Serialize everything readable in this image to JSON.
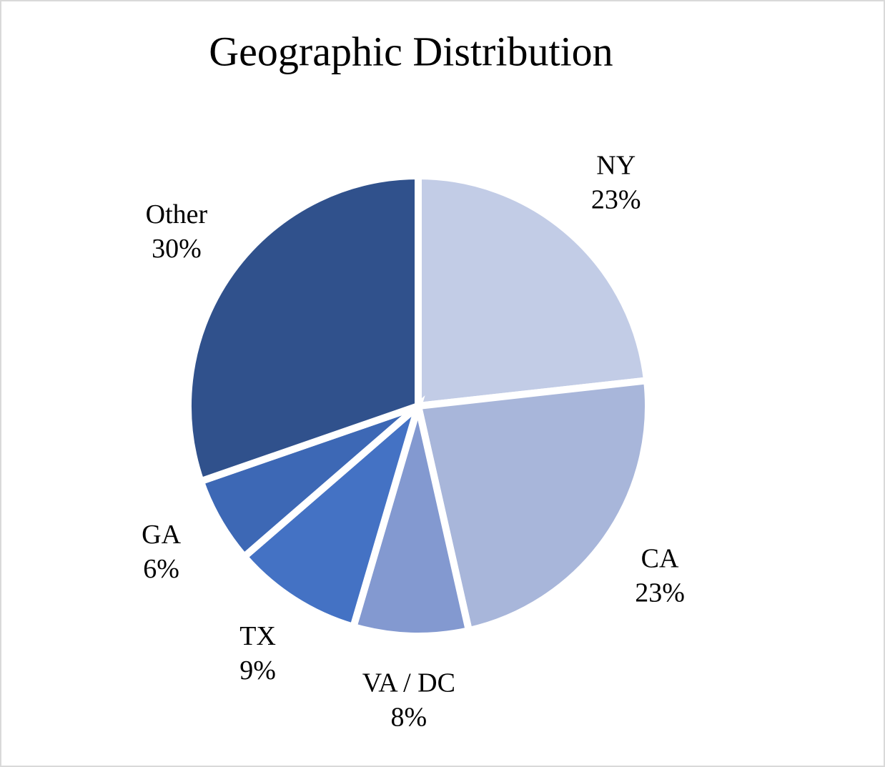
{
  "chart_data": {
    "type": "pie",
    "title": "Geographic Distribution",
    "categories": [
      "NY",
      "CA",
      "VA / DC",
      "TX",
      "GA",
      "Other"
    ],
    "values": [
      23,
      23,
      8,
      9,
      6,
      30
    ],
    "value_labels": [
      "23%",
      "23%",
      "8%",
      "9%",
      "6%",
      "30%"
    ],
    "colors": [
      "#c2cce6",
      "#a8b6da",
      "#8399d0",
      "#4472c4",
      "#3d68b5",
      "#30518c"
    ]
  }
}
